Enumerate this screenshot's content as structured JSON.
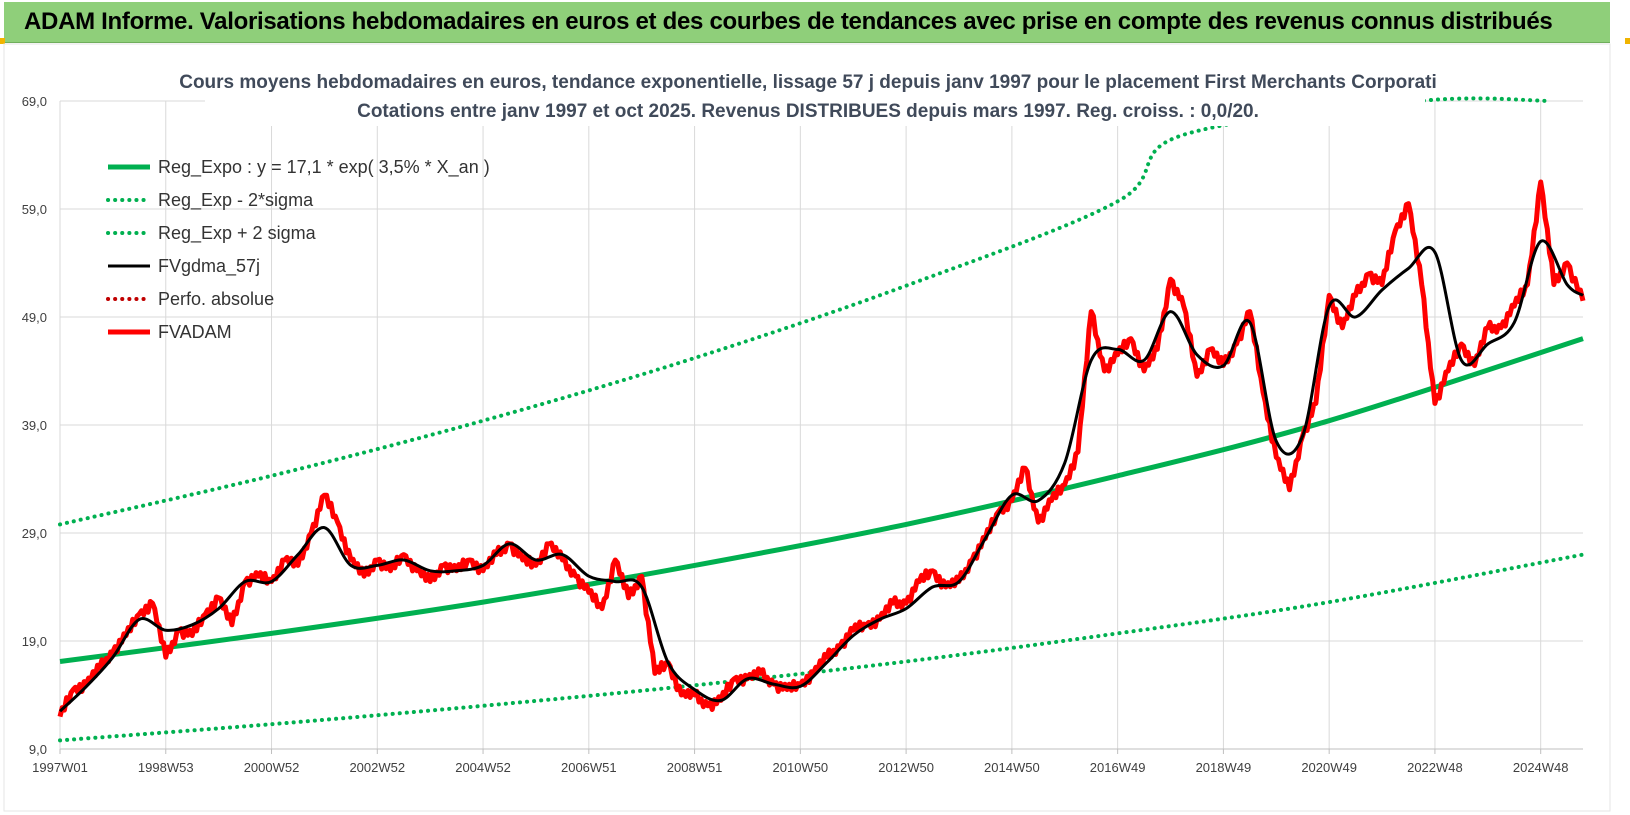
{
  "header": {
    "title": "ADAM Informe. Valorisations hebdomadaires en euros et des courbes de tendances avec prise en compte des revenus connus distribués"
  },
  "chart_data": {
    "type": "line",
    "title": "Cours moyens hebdomadaires en euros, tendance exponentielle, lissage 57 j depuis janv 1997 pour le placement First Merchants Corporati",
    "subtitle": "Cotations entre janv 1997 et oct 2025. Revenus DISTRIBUES depuis mars 1997. Reg. croiss. : 0,0/20.",
    "xlabel": "",
    "ylabel": "",
    "ylim": [
      9,
      69
    ],
    "yticks": [
      "69,0",
      "59,0",
      "49,0",
      "39,0",
      "29,0",
      "19,0",
      "9,0"
    ],
    "xlim": [
      1997.0,
      2025.8
    ],
    "xticks": [
      {
        "label": "1997W01",
        "x": 1997.0
      },
      {
        "label": "1998W53",
        "x": 1999.0
      },
      {
        "label": "2000W52",
        "x": 2001.0
      },
      {
        "label": "2002W52",
        "x": 2003.0
      },
      {
        "label": "2004W52",
        "x": 2005.0
      },
      {
        "label": "2006W51",
        "x": 2007.0
      },
      {
        "label": "2008W51",
        "x": 2009.0
      },
      {
        "label": "2010W50",
        "x": 2011.0
      },
      {
        "label": "2012W50",
        "x": 2013.0
      },
      {
        "label": "2014W50",
        "x": 2015.0
      },
      {
        "label": "2016W49",
        "x": 2017.0
      },
      {
        "label": "2018W49",
        "x": 2019.0
      },
      {
        "label": "2020W49",
        "x": 2021.0
      },
      {
        "label": "2022W48",
        "x": 2023.0
      },
      {
        "label": "2024W48",
        "x": 2025.0
      }
    ],
    "grid": true,
    "legend_position": "top-left",
    "series": [
      {
        "name": "Reg_Expo : y = 17,1 * exp( 3,5% *  X_an )",
        "color": "#00b050",
        "style": "solid-thick",
        "x": [
          1997.0,
          2001.0,
          2005.0,
          2009.0,
          2013.0,
          2017.0,
          2021.0,
          2025.8
        ],
        "values": [
          17.1,
          19.7,
          22.6,
          26.0,
          29.8,
          34.3,
          39.4,
          47.0
        ]
      },
      {
        "name": "Reg_Exp - 2*sigma",
        "color": "#00b050",
        "style": "dotted",
        "x": [
          1997.0,
          2001.0,
          2005.0,
          2009.0,
          2013.0,
          2017.0,
          2021.0,
          2025.8
        ],
        "values": [
          9.8,
          11.3,
          13.0,
          14.9,
          17.1,
          19.7,
          22.6,
          27.0
        ]
      },
      {
        "name": "Reg_Exp + 2 sigma",
        "color": "#00b050",
        "style": "dotted",
        "x": [
          1997.0,
          2001.0,
          2005.0,
          2009.0,
          2013.0,
          2017.0,
          2018.2,
          2022.7,
          2025.2
        ],
        "values": [
          29.8,
          34.3,
          39.4,
          45.2,
          51.9,
          59.7,
          65.8,
          69.0,
          69.0
        ]
      },
      {
        "name": "FVgdma_57j",
        "color": "#000000",
        "style": "solid",
        "x": [
          1997.0,
          1997.5,
          1998.0,
          1998.5,
          1999.0,
          1999.5,
          2000.0,
          2000.5,
          2001.0,
          2001.5,
          2002.0,
          2002.5,
          2003.0,
          2003.5,
          2004.0,
          2004.5,
          2005.0,
          2005.5,
          2006.0,
          2006.5,
          2007.0,
          2007.5,
          2008.0,
          2008.5,
          2009.0,
          2009.5,
          2010.0,
          2010.5,
          2011.0,
          2011.5,
          2012.0,
          2012.5,
          2013.0,
          2013.5,
          2014.0,
          2014.5,
          2015.0,
          2015.5,
          2016.0,
          2016.5,
          2017.0,
          2017.5,
          2018.0,
          2018.5,
          2019.0,
          2019.5,
          2020.0,
          2020.5,
          2021.0,
          2021.5,
          2022.0,
          2022.5,
          2023.0,
          2023.5,
          2024.0,
          2024.5,
          2025.0,
          2025.5,
          2025.8
        ],
        "values": [
          12.5,
          14.8,
          17.5,
          21.0,
          20.0,
          20.5,
          22.0,
          24.5,
          24.5,
          27.0,
          29.5,
          26.0,
          26.0,
          26.5,
          25.5,
          25.5,
          26.0,
          28.0,
          26.5,
          27.0,
          25.0,
          24.5,
          24.0,
          17.0,
          14.5,
          13.5,
          15.5,
          15.0,
          14.8,
          17.0,
          19.5,
          21.0,
          22.0,
          24.0,
          24.5,
          28.5,
          32.5,
          32.0,
          35.5,
          45.0,
          46.0,
          45.0,
          49.5,
          45.5,
          44.5,
          48.5,
          37.5,
          38.0,
          50.0,
          49.0,
          51.5,
          53.5,
          55.0,
          45.0,
          46.5,
          48.5,
          56.0,
          52.0,
          51.0
        ]
      },
      {
        "name": "Perfo. absolue",
        "color": "#c00000",
        "style": "dotted",
        "x": [],
        "values": []
      },
      {
        "name": "FVADAM",
        "color": "#ff0000",
        "style": "solid-thick",
        "x": [
          1997.0,
          1997.25,
          1997.5,
          1997.75,
          1998.0,
          1998.25,
          1998.5,
          1998.75,
          1999.0,
          1999.25,
          1999.5,
          1999.75,
          2000.0,
          2000.25,
          2000.5,
          2000.75,
          2001.0,
          2001.25,
          2001.5,
          2001.75,
          2002.0,
          2002.25,
          2002.5,
          2002.75,
          2003.0,
          2003.25,
          2003.5,
          2003.75,
          2004.0,
          2004.25,
          2004.5,
          2004.75,
          2005.0,
          2005.25,
          2005.5,
          2005.75,
          2006.0,
          2006.25,
          2006.5,
          2006.75,
          2007.0,
          2007.25,
          2007.5,
          2007.75,
          2008.0,
          2008.25,
          2008.5,
          2008.75,
          2009.0,
          2009.25,
          2009.5,
          2009.75,
          2010.0,
          2010.25,
          2010.5,
          2010.75,
          2011.0,
          2011.25,
          2011.5,
          2011.75,
          2012.0,
          2012.25,
          2012.5,
          2012.75,
          2013.0,
          2013.25,
          2013.5,
          2013.75,
          2014.0,
          2014.25,
          2014.5,
          2014.75,
          2015.0,
          2015.25,
          2015.5,
          2015.75,
          2016.0,
          2016.25,
          2016.5,
          2016.75,
          2017.0,
          2017.25,
          2017.5,
          2017.75,
          2018.0,
          2018.25,
          2018.5,
          2018.75,
          2019.0,
          2019.25,
          2019.5,
          2019.75,
          2020.0,
          2020.25,
          2020.5,
          2020.75,
          2021.0,
          2021.25,
          2021.5,
          2021.75,
          2022.0,
          2022.25,
          2022.5,
          2022.75,
          2023.0,
          2023.25,
          2023.5,
          2023.75,
          2024.0,
          2024.25,
          2024.5,
          2024.75,
          2025.0,
          2025.25,
          2025.5,
          2025.8
        ],
        "values": [
          12.0,
          14.5,
          15.0,
          16.5,
          18.0,
          19.5,
          21.5,
          22.5,
          17.5,
          20.0,
          19.5,
          21.5,
          23.0,
          20.5,
          24.5,
          25.0,
          24.5,
          26.5,
          26.0,
          29.0,
          32.5,
          30.0,
          26.5,
          25.0,
          26.5,
          25.5,
          27.0,
          25.5,
          24.5,
          26.0,
          25.5,
          26.5,
          25.5,
          27.0,
          28.0,
          26.5,
          26.0,
          28.0,
          26.5,
          25.0,
          23.5,
          22.0,
          26.5,
          23.0,
          25.0,
          16.0,
          17.0,
          14.0,
          14.0,
          13.0,
          13.5,
          15.5,
          15.5,
          16.0,
          15.0,
          14.5,
          15.0,
          16.0,
          17.5,
          18.5,
          20.0,
          20.5,
          21.0,
          22.5,
          22.5,
          24.5,
          25.5,
          24.0,
          24.5,
          26.5,
          28.5,
          31.0,
          32.0,
          35.0,
          30.0,
          32.0,
          33.5,
          36.5,
          49.5,
          44.0,
          45.5,
          47.0,
          44.0,
          46.0,
          52.5,
          50.0,
          43.5,
          46.0,
          44.5,
          46.5,
          49.5,
          42.0,
          36.0,
          33.0,
          38.0,
          41.0,
          51.0,
          48.0,
          51.0,
          53.0,
          52.0,
          57.0,
          59.5,
          52.0,
          41.0,
          44.0,
          46.5,
          44.5,
          48.0,
          48.0,
          50.0,
          52.0,
          61.5,
          52.0,
          54.0,
          50.5
        ]
      }
    ]
  }
}
